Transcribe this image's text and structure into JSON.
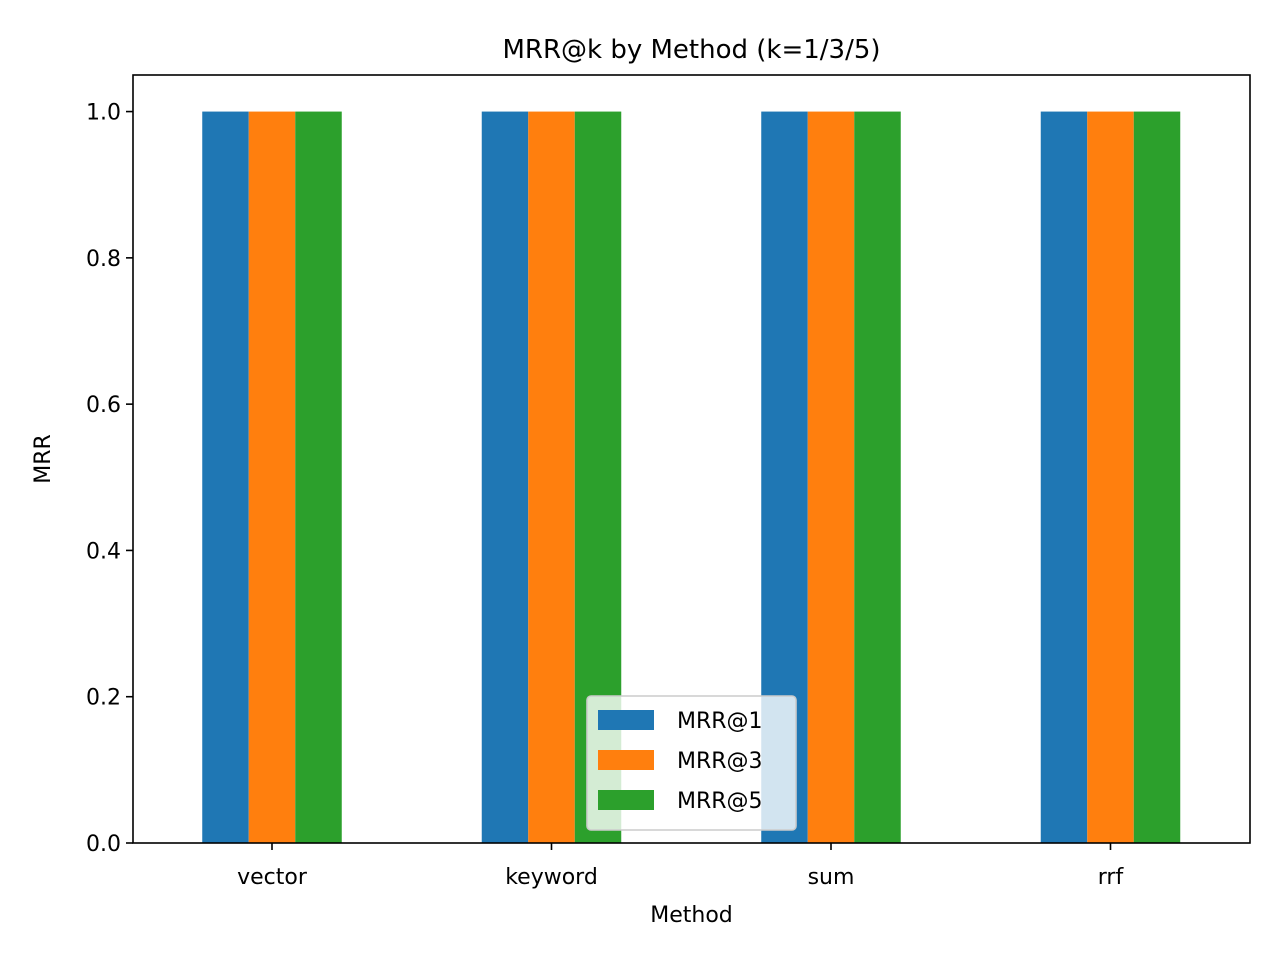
{
  "chart_data": {
    "type": "bar",
    "title": "MRR@k by Method (k=1/3/5)",
    "xlabel": "Method",
    "ylabel": "MRR",
    "categories": [
      "vector",
      "keyword",
      "sum",
      "rrf"
    ],
    "series": [
      {
        "name": "MRR@1",
        "color": "#1f77b4",
        "values": [
          1.0,
          1.0,
          1.0,
          1.0
        ]
      },
      {
        "name": "MRR@3",
        "color": "#ff7f0e",
        "values": [
          1.0,
          1.0,
          1.0,
          1.0
        ]
      },
      {
        "name": "MRR@5",
        "color": "#2ca02c",
        "values": [
          1.0,
          1.0,
          1.0,
          1.0
        ]
      }
    ],
    "ylim": [
      0,
      1.05
    ],
    "yticks": [
      0.0,
      0.2,
      0.4,
      0.6,
      0.8,
      1.0
    ],
    "ytick_labels": [
      "0.0",
      "0.2",
      "0.4",
      "0.6",
      "0.8",
      "1.0"
    ],
    "grid": false,
    "legend": {
      "placement": "bottom-center"
    }
  }
}
